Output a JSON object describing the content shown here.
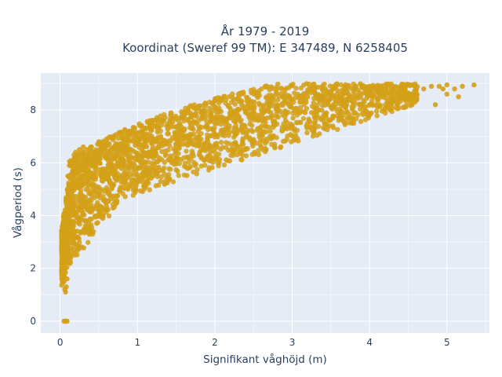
{
  "chart_data": {
    "type": "scatter",
    "title": "År 1979 - 2019",
    "subtitle": "Koordinat (Sweref 99 TM): E 347489, N 6258405",
    "xlabel": "Signifikant våghöjd (m)",
    "ylabel": "Vågperiod (s)",
    "xlim": [
      -0.25,
      5.55
    ],
    "ylim": [
      -0.45,
      9.4
    ],
    "x_ticks": [
      "0",
      "1",
      "2",
      "3",
      "4",
      "5"
    ],
    "y_ticks": [
      "0",
      "2",
      "4",
      "6",
      "8"
    ],
    "grid": true,
    "legend": "none",
    "marker_color": "#D4A017",
    "plot_bgcolor": "#E5ECF6",
    "series": [
      {
        "x": [
          0.05,
          0.06,
          0.07,
          0.08,
          0.09,
          0.05,
          0.06,
          0.07,
          0.08,
          0.09,
          0.1,
          0.12,
          0.15,
          0.18,
          0.2,
          0.22,
          0.25,
          0.28,
          0.3,
          0.35,
          0.4,
          0.45,
          0.5,
          0.55,
          0.6,
          0.7,
          0.8,
          0.9,
          1.0,
          1.1,
          1.2,
          1.3,
          1.4,
          1.5,
          1.6,
          1.7,
          1.8,
          1.9,
          2.0,
          2.1,
          2.2,
          2.3,
          2.4,
          2.5,
          2.6,
          2.7,
          2.8,
          2.9,
          3.0,
          3.1,
          3.2,
          3.3,
          3.4,
          3.5,
          3.6,
          3.7,
          3.8,
          3.9,
          4.0,
          4.1,
          4.2,
          4.3,
          4.4,
          4.5,
          4.6,
          4.7,
          4.8,
          4.9,
          5.0,
          5.1,
          5.2,
          5.35,
          4.55,
          4.85,
          5.0,
          5.15,
          4.95
        ],
        "y": [
          0.0,
          0.0,
          0.0,
          0.0,
          0.0,
          1.5,
          1.2,
          1.1,
          1.3,
          1.6,
          5.5,
          5.9,
          6.0,
          6.3,
          6.4,
          6.2,
          6.5,
          6.3,
          6.6,
          6.5,
          6.6,
          6.4,
          6.8,
          6.7,
          6.9,
          6.6,
          6.7,
          6.5,
          6.7,
          6.8,
          6.9,
          7.0,
          7.1,
          7.0,
          7.2,
          7.3,
          7.3,
          7.4,
          7.5,
          7.6,
          7.7,
          7.7,
          7.9,
          7.9,
          8.0,
          8.1,
          8.2,
          8.3,
          8.4,
          8.3,
          8.5,
          8.6,
          8.6,
          8.7,
          8.5,
          8.7,
          8.8,
          8.9,
          8.9,
          8.7,
          8.6,
          8.8,
          8.8,
          8.6,
          8.7,
          8.8,
          8.9,
          8.9,
          8.95,
          8.8,
          8.9,
          8.95,
          8.2,
          8.2,
          8.6,
          8.5,
          8.8
        ]
      }
    ]
  }
}
